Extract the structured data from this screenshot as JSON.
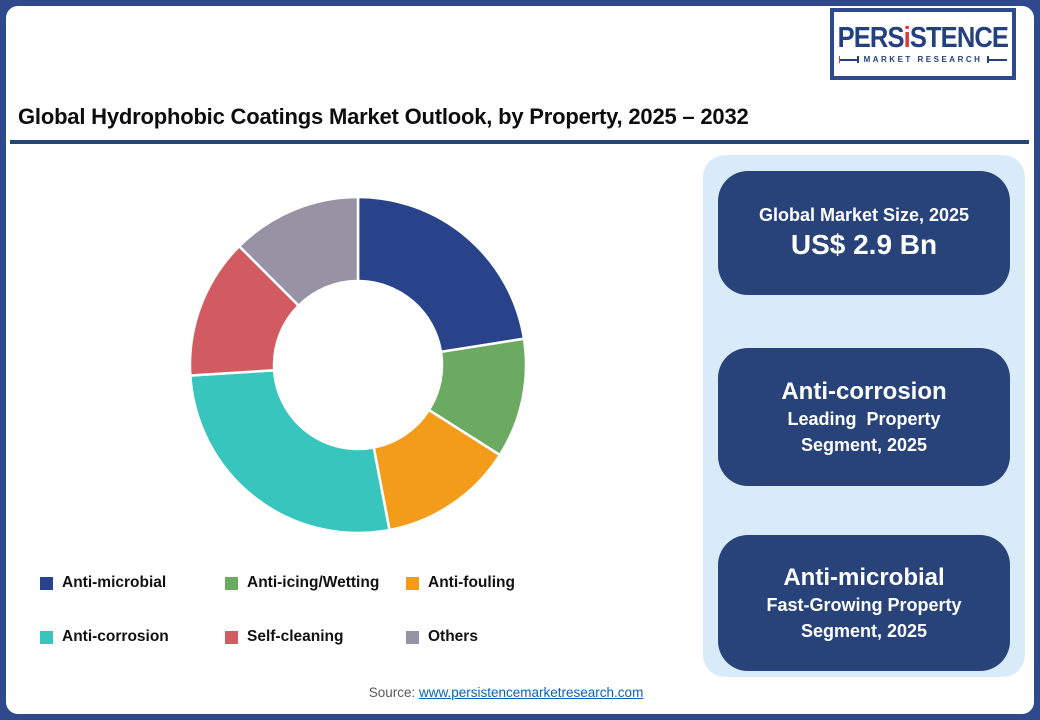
{
  "logo": {
    "brand_prefix": "PERS",
    "brand_i": "i",
    "brand_suffix": "STENCE",
    "tagline": "MARKET RESEARCH"
  },
  "header": {
    "title": "Global Hydrophobic Coatings Market Outlook, by Property, 2025 – 2032"
  },
  "chart_data": {
    "type": "pie",
    "style": "donut",
    "start_angle_deg": 0,
    "direction": "clockwise",
    "inner_radius_ratio": 0.5,
    "legend_position": "bottom",
    "categories": [
      "Anti-microbial",
      "Anti-icing/Wetting",
      "Anti-fouling",
      "Anti-corrosion",
      "Self-cleaning",
      "Others"
    ],
    "values": [
      22.5,
      11.5,
      13,
      27,
      13.5,
      12.5
    ],
    "values_note": "percent share estimated from arc angles; no numeric labels shown in figure",
    "colors": [
      "#29438a",
      "#6caa61",
      "#f39c1a",
      "#38c5bd",
      "#d15b60",
      "#9792a4"
    ]
  },
  "cards": [
    {
      "title": "Global Market Size, 2025",
      "value": "US$ 2.9 Bn"
    },
    {
      "title": "Anti-corrosion",
      "line1": "Leading  Property",
      "line2": "Segment, 2025"
    },
    {
      "title": "Anti-microbial",
      "line1": "Fast-Growing Property",
      "line2": "Segment, 2025"
    }
  ],
  "footer": {
    "source_label": "Source:",
    "source_link_text": "www.persistencemarketresearch.com"
  },
  "theme": {
    "frame_navy": "#2e4a8c",
    "title_rule_navy": "#274572",
    "card_navy": "#274379",
    "panel_light_blue": "#d9ebf8",
    "logo_navy": "#24407e",
    "logo_red": "#d93a3e",
    "link_blue": "#0563c1"
  }
}
